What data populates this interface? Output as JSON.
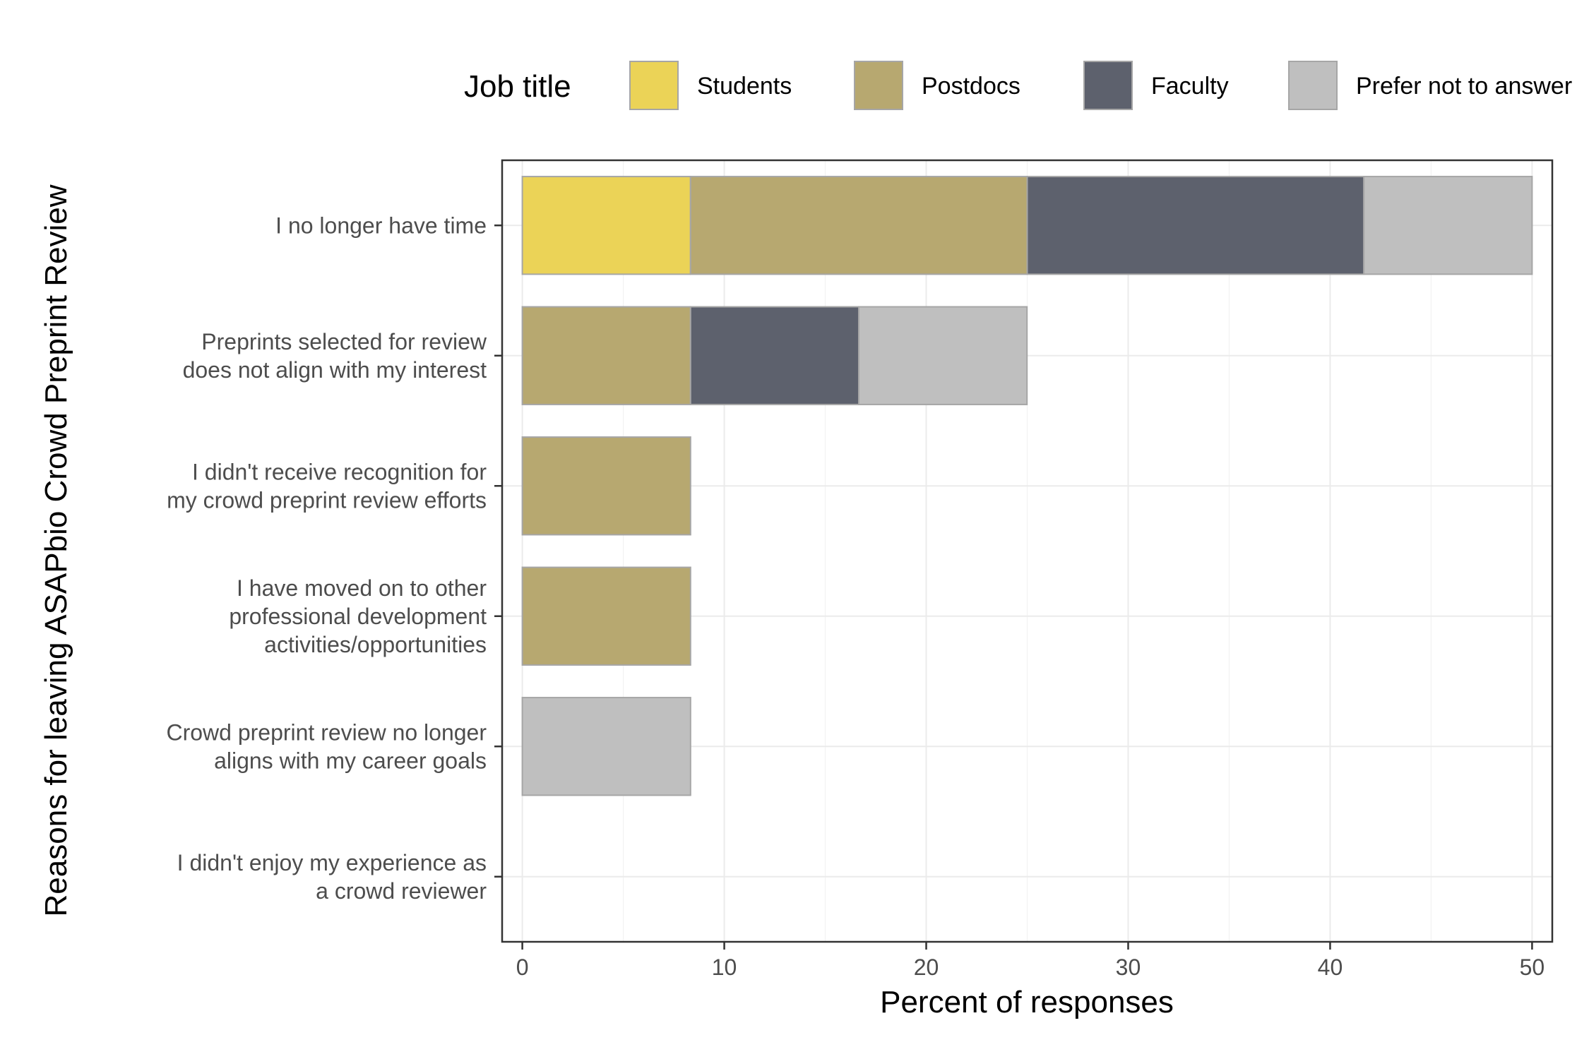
{
  "chart_data": {
    "type": "bar",
    "orientation": "horizontal",
    "stacked": true,
    "categories": [
      [
        "I no longer have time"
      ],
      [
        "Preprints selected for review",
        "does not align with my interest"
      ],
      [
        "I didn't receive recognition for",
        "my crowd preprint review efforts"
      ],
      [
        "I have moved on to other",
        "professional development",
        "activities/opportunities"
      ],
      [
        "Crowd preprint review no longer",
        "aligns with my career goals"
      ],
      [
        "I didn't enjoy my experience as",
        "a crowd reviewer"
      ]
    ],
    "series": [
      {
        "name": "Students",
        "color": "#EBD357",
        "values": [
          8.33,
          0,
          0,
          0,
          0,
          0
        ]
      },
      {
        "name": "Postdocs",
        "color": "#B7A870",
        "values": [
          16.67,
          8.33,
          8.33,
          8.33,
          0,
          0
        ]
      },
      {
        "name": "Faculty",
        "color": "#5D616D",
        "values": [
          16.67,
          8.33,
          0,
          0,
          0,
          0
        ]
      },
      {
        "name": "Prefer not to answer",
        "color": "#BFBFBF",
        "values": [
          8.33,
          8.33,
          0,
          0,
          8.33,
          0
        ]
      }
    ],
    "xlabel": "Percent of responses",
    "ylabel": "Reasons for leaving ASAPbio Crowd Preprint Review",
    "xlim": [
      -1,
      51
    ],
    "xticks": [
      0,
      10,
      20,
      30,
      40,
      50
    ],
    "legend": {
      "title": "Job title",
      "position": "top"
    },
    "grid": true
  }
}
